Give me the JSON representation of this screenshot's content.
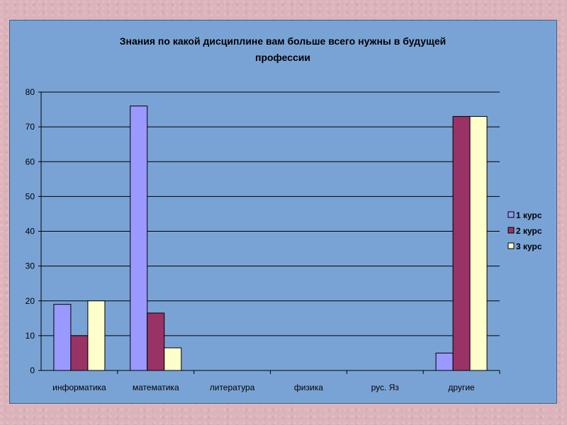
{
  "chart_data": {
    "type": "bar",
    "title_lines": [
      "Знания по какой дисциплине вам больше всего нужны в будущей",
      "профессии"
    ],
    "categories": [
      "информатика",
      "математика",
      "литература",
      "физика",
      "рус. Яз",
      "другие"
    ],
    "series": [
      {
        "name": "1 курс",
        "color": "#9999ff",
        "values": [
          19,
          76,
          0,
          0,
          0,
          5
        ]
      },
      {
        "name": "2 курс",
        "color": "#993366",
        "values": [
          10,
          16.5,
          0,
          0,
          0,
          73
        ]
      },
      {
        "name": "3 курс",
        "color": "#ffffcc",
        "values": [
          20,
          6.5,
          0,
          0,
          0,
          73
        ]
      }
    ],
    "ylim": [
      0,
      80
    ],
    "yticks": [
      0,
      10,
      20,
      30,
      40,
      50,
      60,
      70,
      80
    ],
    "grid": true,
    "legend_position": "right",
    "xlabel": "",
    "ylabel": ""
  }
}
